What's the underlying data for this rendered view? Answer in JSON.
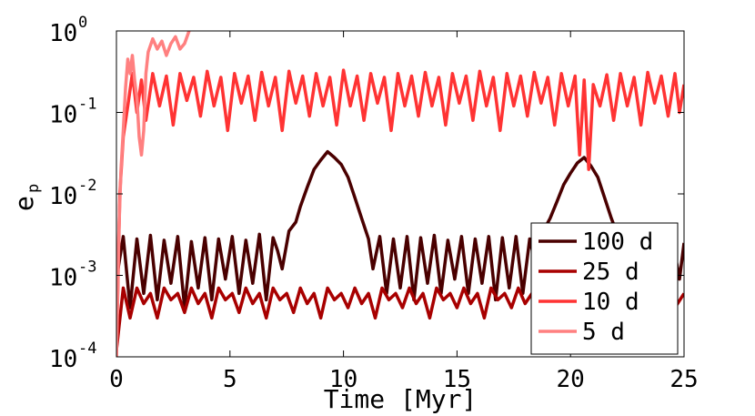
{
  "chart_data": {
    "type": "line",
    "xlabel": "Time [Myr]",
    "ylabel_base": "e",
    "ylabel_sub": "p",
    "xlim": [
      0,
      25
    ],
    "ylim": [
      0.0001,
      1
    ],
    "yscale": "log",
    "grid": false,
    "legend_placement": "bottom-right",
    "x_ticks": [
      0,
      5,
      10,
      15,
      20,
      25
    ],
    "x_tick_labels": [
      "0",
      "5",
      "10",
      "15",
      "20",
      "25"
    ],
    "y_ticks": [
      0.0001,
      0.001,
      0.01,
      0.1,
      1
    ],
    "y_tick_base": "10",
    "y_tick_exponents": [
      "-4",
      "-3",
      "-2",
      "-1",
      "0"
    ],
    "series": [
      {
        "name": "100 d",
        "color": "#4a0000",
        "points": [
          [
            0,
            0.0009
          ],
          [
            0.3,
            0.003
          ],
          [
            0.6,
            0.0004
          ],
          [
            0.9,
            0.0028
          ],
          [
            1.2,
            0.0006
          ],
          [
            1.5,
            0.0031
          ],
          [
            1.8,
            0.0005
          ],
          [
            2.1,
            0.0027
          ],
          [
            2.4,
            0.0008
          ],
          [
            2.7,
            0.003
          ],
          [
            3.0,
            0.0004
          ],
          [
            3.3,
            0.0026
          ],
          [
            3.6,
            0.0007
          ],
          [
            3.9,
            0.0029
          ],
          [
            4.2,
            0.0005
          ],
          [
            4.5,
            0.0028
          ],
          [
            4.8,
            0.0009
          ],
          [
            5.1,
            0.003
          ],
          [
            5.4,
            0.0006
          ],
          [
            5.7,
            0.0027
          ],
          [
            6.0,
            0.0008
          ],
          [
            6.3,
            0.0032
          ],
          [
            6.6,
            0.0005
          ],
          [
            6.9,
            0.0029
          ],
          [
            7.1,
            0.002
          ],
          [
            7.3,
            0.0012
          ],
          [
            7.6,
            0.0035
          ],
          [
            7.9,
            0.0045
          ],
          [
            8.1,
            0.007
          ],
          [
            8.4,
            0.012
          ],
          [
            8.7,
            0.02
          ],
          [
            9.0,
            0.026
          ],
          [
            9.3,
            0.033
          ],
          [
            9.6,
            0.028
          ],
          [
            9.9,
            0.023
          ],
          [
            10.2,
            0.016
          ],
          [
            10.5,
            0.009
          ],
          [
            10.8,
            0.005
          ],
          [
            11.1,
            0.0028
          ],
          [
            11.3,
            0.0012
          ],
          [
            11.6,
            0.003
          ],
          [
            11.9,
            0.0006
          ],
          [
            12.2,
            0.0028
          ],
          [
            12.5,
            0.0007
          ],
          [
            12.8,
            0.003
          ],
          [
            13.1,
            0.0005
          ],
          [
            13.4,
            0.0029
          ],
          [
            13.7,
            0.0008
          ],
          [
            14.0,
            0.0031
          ],
          [
            14.3,
            0.0006
          ],
          [
            14.6,
            0.0027
          ],
          [
            14.9,
            0.0009
          ],
          [
            15.2,
            0.003
          ],
          [
            15.5,
            0.0006
          ],
          [
            15.8,
            0.0028
          ],
          [
            16.1,
            0.0008
          ],
          [
            16.4,
            0.003
          ],
          [
            16.7,
            0.0005
          ],
          [
            17.0,
            0.0029
          ],
          [
            17.3,
            0.0007
          ],
          [
            17.6,
            0.003
          ],
          [
            17.9,
            0.0006
          ],
          [
            18.2,
            0.0028
          ],
          [
            18.5,
            0.0012
          ],
          [
            18.8,
            0.0035
          ],
          [
            19.1,
            0.005
          ],
          [
            19.4,
            0.008
          ],
          [
            19.7,
            0.013
          ],
          [
            20.0,
            0.018
          ],
          [
            20.3,
            0.024
          ],
          [
            20.6,
            0.028
          ],
          [
            20.9,
            0.022
          ],
          [
            21.2,
            0.016
          ],
          [
            21.5,
            0.009
          ],
          [
            21.8,
            0.005
          ],
          [
            22.1,
            0.003
          ],
          [
            22.4,
            0.0012
          ],
          [
            22.7,
            0.003
          ],
          [
            23.0,
            0.0006
          ],
          [
            23.3,
            0.0028
          ],
          [
            23.6,
            0.0008
          ],
          [
            23.9,
            0.003
          ],
          [
            24.2,
            0.0006
          ],
          [
            24.5,
            0.0027
          ],
          [
            24.8,
            0.0009
          ],
          [
            25,
            0.0025
          ]
        ]
      },
      {
        "name": "25 d",
        "color": "#a80000",
        "points": [
          [
            0,
            0.00012
          ],
          [
            0.3,
            0.0007
          ],
          [
            0.6,
            0.0003
          ],
          [
            0.9,
            0.0007
          ],
          [
            1.2,
            0.00045
          ],
          [
            1.5,
            0.0006
          ],
          [
            1.8,
            0.0003
          ],
          [
            2.1,
            0.0007
          ],
          [
            2.4,
            0.0005
          ],
          [
            2.7,
            0.0006
          ],
          [
            3.0,
            0.00035
          ],
          [
            3.3,
            0.0007
          ],
          [
            3.6,
            0.00045
          ],
          [
            3.9,
            0.0006
          ],
          [
            4.2,
            0.0003
          ],
          [
            4.5,
            0.0007
          ],
          [
            4.8,
            0.0005
          ],
          [
            5.1,
            0.0006
          ],
          [
            5.4,
            0.00035
          ],
          [
            5.7,
            0.0007
          ],
          [
            6.0,
            0.00045
          ],
          [
            6.3,
            0.0006
          ],
          [
            6.6,
            0.0003
          ],
          [
            6.9,
            0.0007
          ],
          [
            7.2,
            0.0005
          ],
          [
            7.5,
            0.0006
          ],
          [
            7.8,
            0.00035
          ],
          [
            8.1,
            0.0007
          ],
          [
            8.4,
            0.00045
          ],
          [
            8.7,
            0.0006
          ],
          [
            9.0,
            0.0003
          ],
          [
            9.3,
            0.0007
          ],
          [
            9.6,
            0.0005
          ],
          [
            9.9,
            0.0006
          ],
          [
            10.2,
            0.0004
          ],
          [
            10.5,
            0.0007
          ],
          [
            10.8,
            0.00045
          ],
          [
            11.1,
            0.0006
          ],
          [
            11.4,
            0.0003
          ],
          [
            11.7,
            0.0007
          ],
          [
            12.0,
            0.0005
          ],
          [
            12.3,
            0.0006
          ],
          [
            12.6,
            0.0004
          ],
          [
            12.9,
            0.0007
          ],
          [
            13.2,
            0.00045
          ],
          [
            13.5,
            0.0006
          ],
          [
            13.8,
            0.0003
          ],
          [
            14.1,
            0.0007
          ],
          [
            14.4,
            0.0005
          ],
          [
            14.7,
            0.0006
          ],
          [
            15.0,
            0.0004
          ],
          [
            15.3,
            0.0007
          ],
          [
            15.6,
            0.00045
          ],
          [
            15.9,
            0.0006
          ],
          [
            16.2,
            0.0003
          ],
          [
            16.5,
            0.0007
          ],
          [
            16.8,
            0.0005
          ],
          [
            17.1,
            0.0006
          ],
          [
            17.4,
            0.0004
          ],
          [
            17.7,
            0.0007
          ],
          [
            18.0,
            0.00045
          ],
          [
            18.3,
            0.0006
          ],
          [
            18.6,
            0.0003
          ],
          [
            18.9,
            0.0007
          ],
          [
            19.2,
            0.0005
          ],
          [
            19.5,
            0.0006
          ],
          [
            19.8,
            0.0004
          ],
          [
            20.1,
            0.0007
          ],
          [
            20.4,
            0.00045
          ],
          [
            20.7,
            0.0006
          ],
          [
            21.0,
            0.0003
          ],
          [
            21.3,
            0.0007
          ],
          [
            21.6,
            0.0005
          ],
          [
            21.9,
            0.0006
          ],
          [
            22.2,
            0.0004
          ],
          [
            22.5,
            0.0007
          ],
          [
            22.8,
            0.00045
          ],
          [
            23.1,
            0.0006
          ],
          [
            23.4,
            0.0003
          ],
          [
            23.7,
            0.0007
          ],
          [
            24.0,
            0.0005
          ],
          [
            24.3,
            0.0006
          ],
          [
            24.6,
            0.0004
          ],
          [
            25,
            0.0006
          ]
        ]
      },
      {
        "name": "10 d",
        "color": "#ff3333",
        "points": [
          [
            0,
            0.0001
          ],
          [
            0.15,
            0.01
          ],
          [
            0.3,
            0.05
          ],
          [
            0.5,
            0.12
          ],
          [
            0.7,
            0.3
          ],
          [
            0.9,
            0.1
          ],
          [
            1.1,
            0.25
          ],
          [
            1.3,
            0.08
          ],
          [
            1.6,
            0.3
          ],
          [
            1.9,
            0.12
          ],
          [
            2.2,
            0.28
          ],
          [
            2.5,
            0.07
          ],
          [
            2.8,
            0.3
          ],
          [
            3.1,
            0.14
          ],
          [
            3.4,
            0.27
          ],
          [
            3.7,
            0.09
          ],
          [
            4.0,
            0.32
          ],
          [
            4.3,
            0.12
          ],
          [
            4.6,
            0.27
          ],
          [
            4.9,
            0.06
          ],
          [
            5.2,
            0.3
          ],
          [
            5.5,
            0.13
          ],
          [
            5.8,
            0.28
          ],
          [
            6.1,
            0.08
          ],
          [
            6.4,
            0.31
          ],
          [
            6.7,
            0.12
          ],
          [
            7.0,
            0.27
          ],
          [
            7.3,
            0.06
          ],
          [
            7.6,
            0.32
          ],
          [
            7.9,
            0.13
          ],
          [
            8.2,
            0.28
          ],
          [
            8.5,
            0.09
          ],
          [
            8.8,
            0.3
          ],
          [
            9.1,
            0.12
          ],
          [
            9.4,
            0.27
          ],
          [
            9.7,
            0.07
          ],
          [
            10.0,
            0.33
          ],
          [
            10.3,
            0.12
          ],
          [
            10.6,
            0.28
          ],
          [
            10.9,
            0.08
          ],
          [
            11.2,
            0.3
          ],
          [
            11.5,
            0.13
          ],
          [
            11.8,
            0.27
          ],
          [
            12.1,
            0.06
          ],
          [
            12.4,
            0.3
          ],
          [
            12.7,
            0.12
          ],
          [
            13.0,
            0.28
          ],
          [
            13.3,
            0.09
          ],
          [
            13.6,
            0.31
          ],
          [
            13.9,
            0.12
          ],
          [
            14.2,
            0.27
          ],
          [
            14.5,
            0.07
          ],
          [
            14.8,
            0.3
          ],
          [
            15.1,
            0.13
          ],
          [
            15.4,
            0.28
          ],
          [
            15.7,
            0.08
          ],
          [
            16.0,
            0.32
          ],
          [
            16.3,
            0.12
          ],
          [
            16.6,
            0.27
          ],
          [
            16.9,
            0.06
          ],
          [
            17.2,
            0.3
          ],
          [
            17.5,
            0.12
          ],
          [
            17.8,
            0.28
          ],
          [
            18.1,
            0.09
          ],
          [
            18.4,
            0.31
          ],
          [
            18.7,
            0.13
          ],
          [
            19.0,
            0.27
          ],
          [
            19.3,
            0.07
          ],
          [
            19.6,
            0.3
          ],
          [
            19.9,
            0.12
          ],
          [
            20.2,
            0.28
          ],
          [
            20.4,
            0.03
          ],
          [
            20.6,
            0.25
          ],
          [
            20.8,
            0.02
          ],
          [
            21.0,
            0.22
          ],
          [
            21.3,
            0.12
          ],
          [
            21.6,
            0.29
          ],
          [
            21.9,
            0.08
          ],
          [
            22.2,
            0.3
          ],
          [
            22.5,
            0.12
          ],
          [
            22.8,
            0.27
          ],
          [
            23.1,
            0.07
          ],
          [
            23.4,
            0.31
          ],
          [
            23.7,
            0.13
          ],
          [
            24.0,
            0.28
          ],
          [
            24.3,
            0.09
          ],
          [
            24.6,
            0.3
          ],
          [
            24.8,
            0.1
          ],
          [
            25,
            0.22
          ]
        ]
      },
      {
        "name": "5 d",
        "color": "#ff8080",
        "points": [
          [
            0,
            0.0001
          ],
          [
            0.1,
            0.003
          ],
          [
            0.2,
            0.02
          ],
          [
            0.3,
            0.06
          ],
          [
            0.4,
            0.2
          ],
          [
            0.5,
            0.45
          ],
          [
            0.6,
            0.3
          ],
          [
            0.7,
            0.5
          ],
          [
            0.8,
            0.25
          ],
          [
            0.9,
            0.15
          ],
          [
            1.0,
            0.05
          ],
          [
            1.1,
            0.03
          ],
          [
            1.2,
            0.06
          ],
          [
            1.3,
            0.3
          ],
          [
            1.4,
            0.55
          ],
          [
            1.6,
            0.8
          ],
          [
            1.8,
            0.6
          ],
          [
            2.0,
            0.75
          ],
          [
            2.2,
            0.5
          ],
          [
            2.4,
            0.7
          ],
          [
            2.6,
            0.85
          ],
          [
            2.8,
            0.6
          ],
          [
            3.0,
            0.7
          ],
          [
            3.2,
            1.0
          ]
        ]
      }
    ]
  }
}
